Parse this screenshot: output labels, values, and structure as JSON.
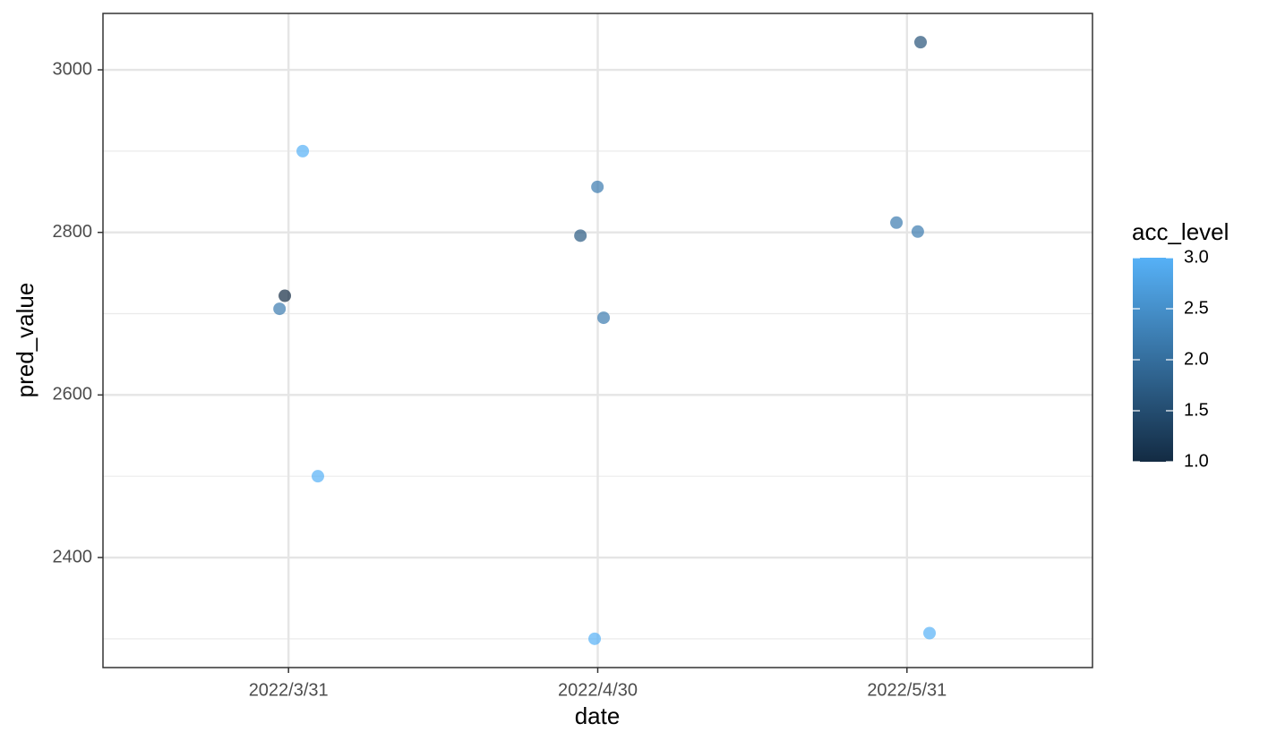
{
  "chart_data": {
    "type": "scatter",
    "x_label": "date",
    "y_label": "pred_value",
    "xlim": [
      0.4,
      3.6
    ],
    "xticks": [
      {
        "value": 1,
        "label": "2022/3/31"
      },
      {
        "value": 2,
        "label": "2022/4/30"
      },
      {
        "value": 3,
        "label": "2022/5/31"
      }
    ],
    "ylim": [
      2264.6,
      3069.4
    ],
    "yticks": [
      2400,
      2600,
      2800,
      3000
    ],
    "yminor": [
      2300,
      2500,
      2700,
      2900
    ],
    "grid": true,
    "x": [
      1.046,
      0.988,
      0.971,
      1.095,
      1.999,
      1.944,
      2.019,
      1.99,
      3.044,
      2.966,
      3.035,
      3.073
    ],
    "y": [
      2900,
      2722,
      2706,
      2500,
      2856,
      2796,
      2695,
      2300,
      3034,
      2812,
      2801,
      2307
    ],
    "color_values": [
      3,
      1,
      2.2,
      3,
      2.2,
      1.7,
      2.2,
      3,
      1.6,
      2.2,
      2.2,
      3
    ],
    "color_label": "acc_level",
    "colorscale": [
      "#132B43",
      "#56B1F7"
    ],
    "clim": [
      1,
      3
    ],
    "cticks": [
      {
        "value": 1,
        "label": "1.0"
      },
      {
        "value": 1.5,
        "label": "1.5"
      },
      {
        "value": 2,
        "label": "2.0"
      },
      {
        "value": 2.5,
        "label": "2.5"
      },
      {
        "value": 3,
        "label": "3.0"
      }
    ]
  }
}
